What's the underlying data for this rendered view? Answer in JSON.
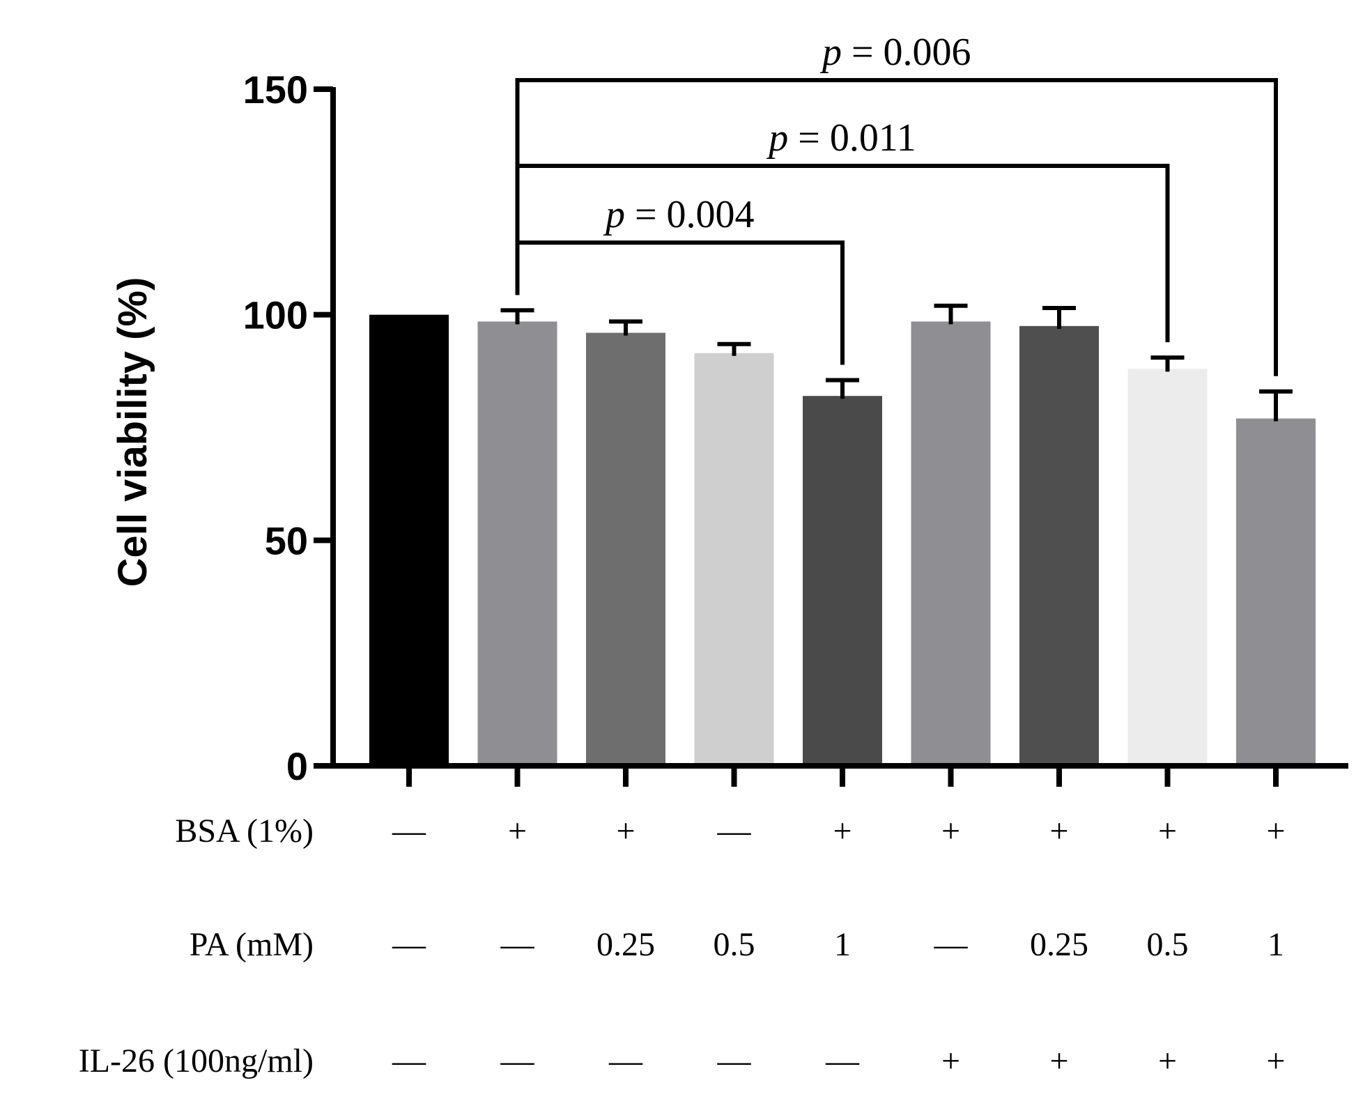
{
  "chart_data": {
    "type": "bar",
    "ylabel": "Cell viability (%)",
    "ylim": [
      0,
      150
    ],
    "yticks": [
      0,
      50,
      100,
      150
    ],
    "groups": [
      {
        "value": 100,
        "error": 0,
        "color": "#000000"
      },
      {
        "value": 98.5,
        "error": 2.5,
        "color": "#8f8e93"
      },
      {
        "value": 96,
        "error": 2.5,
        "color": "#6e6e6e"
      },
      {
        "value": 91.5,
        "error": 2,
        "color": "#cfcfcf"
      },
      {
        "value": 82,
        "error": 3.5,
        "color": "#4a4a4a"
      },
      {
        "value": 98.5,
        "error": 3.5,
        "color": "#8f8e93"
      },
      {
        "value": 97.5,
        "error": 4,
        "color": "#4f4f4f"
      },
      {
        "value": 88,
        "error": 2.5,
        "color": "#ececec"
      },
      {
        "value": 77,
        "error": 6,
        "color": "#8f8e93"
      }
    ],
    "conditions": [
      {
        "label": "BSA (1%)",
        "values": [
          "—",
          "+",
          "+",
          "—",
          "+",
          "+",
          "+",
          "+",
          "+"
        ]
      },
      {
        "label": "PA (mM)",
        "values": [
          "—",
          "—",
          "0.25",
          "0.5",
          "1",
          "—",
          "0.25",
          "0.5",
          "1"
        ]
      },
      {
        "label": "IL-26 (100ng/ml)",
        "values": [
          "—",
          "—",
          "—",
          "—",
          "—",
          "+",
          "+",
          "+",
          "+"
        ]
      }
    ],
    "comparisons": [
      {
        "from": 2,
        "to": 5,
        "bracket_y": 116,
        "p": "0.004"
      },
      {
        "from": 2,
        "to": 8,
        "bracket_y": 133,
        "p": "0.011"
      },
      {
        "from": 2,
        "to": 9,
        "bracket_y": 152,
        "p": "0.006"
      }
    ],
    "p_prefix": "p",
    "p_equals": " = "
  }
}
